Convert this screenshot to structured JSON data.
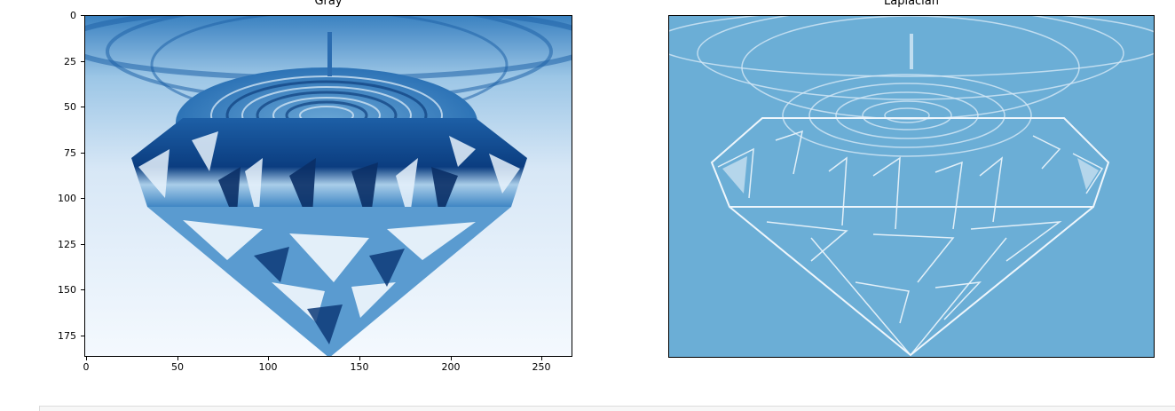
{
  "panels": [
    {
      "title": "Gray",
      "colormap": "Blues",
      "x_ticks": [
        "0",
        "50",
        "100",
        "150",
        "200",
        "250"
      ],
      "y_ticks": [
        "0",
        "25",
        "50",
        "75",
        "100",
        "125",
        "150",
        "175"
      ],
      "xlim": [
        0,
        265
      ],
      "ylim": [
        187,
        0
      ]
    },
    {
      "title": "Laplacian",
      "colormap": "Blues",
      "axis": "off"
    }
  ],
  "colors": {
    "gray_dark": "#08306b",
    "gray_mid": "#2f7bbd",
    "gray_light": "#eef5fc",
    "laplacian_bg": "#6baed6",
    "laplacian_edge": "#e9f3fb"
  }
}
